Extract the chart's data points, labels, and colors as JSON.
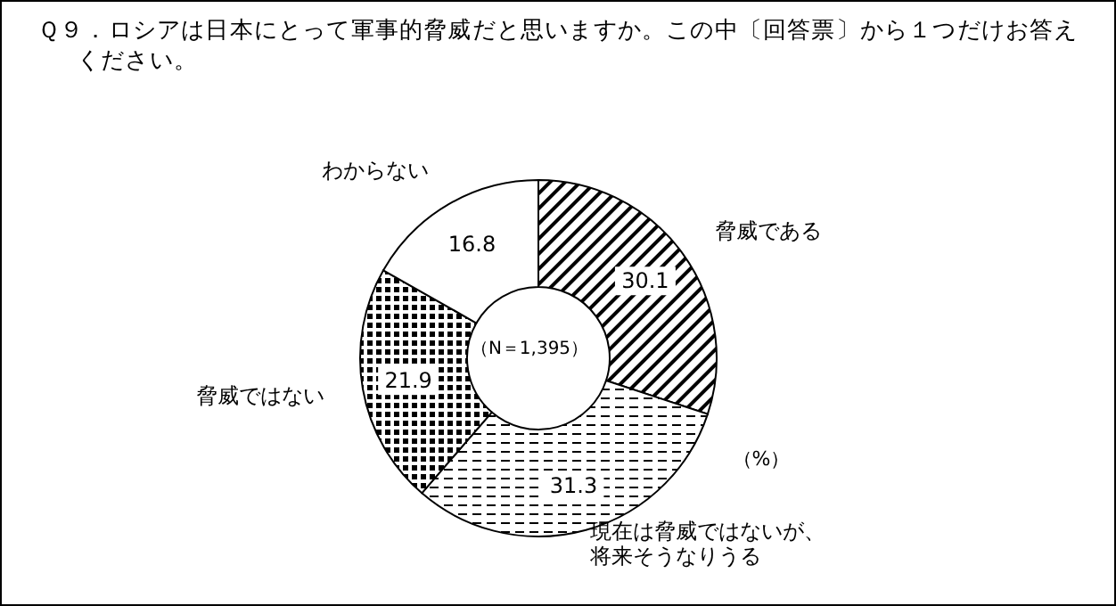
{
  "chart_data": {
    "type": "donut",
    "title": "Ｑ９．ロシアは日本にとって軍事的脅威だと思いますか。この中〔回答票〕から１つだけお答えください。",
    "categories": [
      "脅威である",
      "現在は脅威ではないが、将来そうなりうる",
      "脅威ではない",
      "わからない"
    ],
    "values": [
      30.1,
      31.3,
      21.9,
      16.8
    ],
    "colors": [
      "#000000",
      "#000000",
      "#000000",
      "#ffffff"
    ],
    "data_labels": true,
    "annotations": [
      "（N＝1,395）",
      "（%）"
    ]
  }
}
